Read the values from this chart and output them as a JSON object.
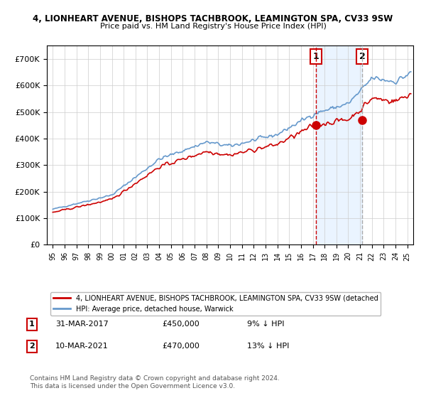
{
  "title1": "4, LIONHEART AVENUE, BISHOPS TACHBROOK, LEAMINGTON SPA, CV33 9SW",
  "title2": "Price paid vs. HM Land Registry's House Price Index (HPI)",
  "legend_red": "4, LIONHEART AVENUE, BISHOPS TACHBROOK, LEAMINGTON SPA, CV33 9SW (detached",
  "legend_blue": "HPI: Average price, detached house, Warwick",
  "annotation1_label": "1",
  "annotation1_date": "31-MAR-2017",
  "annotation1_price": "£450,000",
  "annotation1_hpi": "9% ↓ HPI",
  "annotation2_label": "2",
  "annotation2_date": "10-MAR-2021",
  "annotation2_price": "£470,000",
  "annotation2_hpi": "13% ↓ HPI",
  "footer": "Contains HM Land Registry data © Crown copyright and database right 2024.\nThis data is licensed under the Open Government Licence v3.0.",
  "sale1_x": 2017.25,
  "sale1_y": 450000,
  "sale2_x": 2021.19,
  "sale2_y": 470000,
  "ylim": [
    0,
    750000
  ],
  "xlim": [
    1994.5,
    2025.5
  ],
  "yticks": [
    0,
    100000,
    200000,
    300000,
    400000,
    500000,
    600000,
    700000
  ],
  "ytick_labels": [
    "£0",
    "£100K",
    "£200K",
    "£300K",
    "£400K",
    "£500K",
    "£600K",
    "£700K"
  ],
  "xtick_years": [
    1995,
    1996,
    1997,
    1998,
    1999,
    2000,
    2001,
    2002,
    2003,
    2004,
    2005,
    2006,
    2007,
    2008,
    2009,
    2010,
    2011,
    2012,
    2013,
    2014,
    2015,
    2016,
    2017,
    2018,
    2019,
    2020,
    2021,
    2022,
    2023,
    2024,
    2025
  ],
  "color_red": "#cc0000",
  "color_blue": "#6699cc",
  "color_fill": "#ddeeff",
  "shade_start": 2017.25,
  "shade_end": 2021.19
}
